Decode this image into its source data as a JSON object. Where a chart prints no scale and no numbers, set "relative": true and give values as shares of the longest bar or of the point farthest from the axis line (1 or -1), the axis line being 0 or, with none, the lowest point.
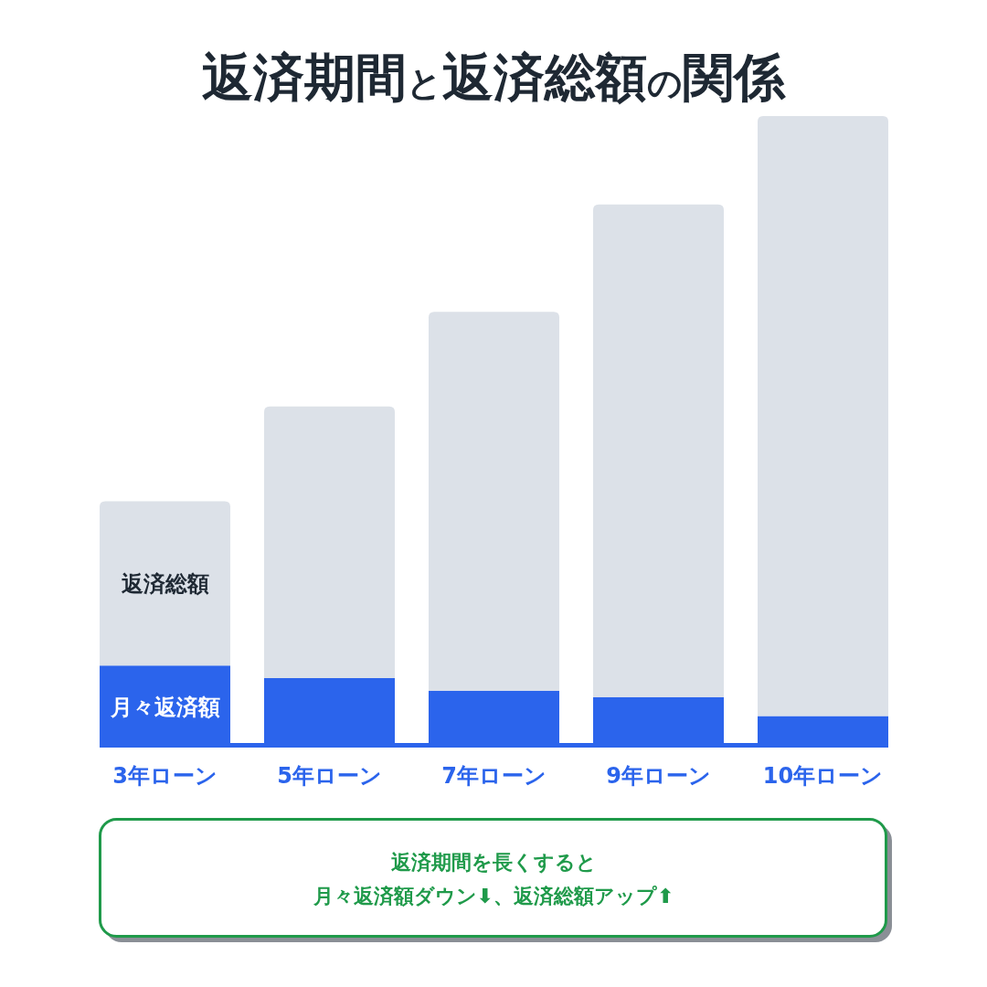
{
  "chart_data": {
    "type": "bar",
    "title": "返済期間と返済総額の関係",
    "categories": [
      "3年ローン",
      "5年ローン",
      "7年ローン",
      "9年ローン",
      "10年ローン"
    ],
    "stacked": true,
    "relative": true,
    "series": [
      {
        "name": "月々返済額",
        "color": "#2b64ec",
        "values": [
          0.13,
          0.11,
          0.09,
          0.08,
          0.05
        ]
      },
      {
        "name": "返済総額",
        "color": "#dce1e8",
        "values": [
          0.26,
          0.43,
          0.6,
          0.78,
          0.95
        ]
      }
    ],
    "annotations": [
      "返済期間を長くすると",
      "月々返済額ダウン⬇、返済総額アップ⬆"
    ]
  }
}
